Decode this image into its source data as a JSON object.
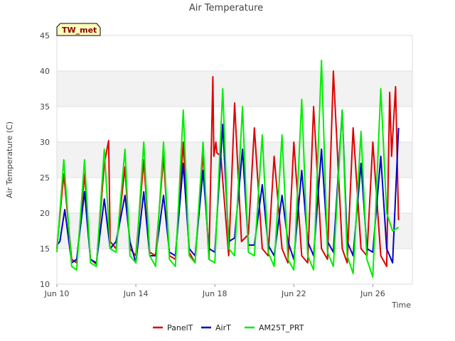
{
  "chart_data": {
    "type": "line",
    "title": "Air Temperature",
    "xlabel": "Time",
    "ylabel": "Air Temperature (C)",
    "station_label": "TW_met",
    "ylim": [
      10,
      45
    ],
    "yticks": [
      10,
      15,
      20,
      25,
      30,
      35,
      40,
      45
    ],
    "xlim": [
      10,
      28
    ],
    "xticks": [
      {
        "x": 10,
        "label": "Jun 10"
      },
      {
        "x": 14,
        "label": "Jun 14"
      },
      {
        "x": 18,
        "label": "Jun 18"
      },
      {
        "x": 22,
        "label": "Jun 22"
      },
      {
        "x": 26,
        "label": "Jun 26"
      }
    ],
    "grid": "horizontal bands",
    "legend_position": "bottom",
    "series": [
      {
        "name": "PanelT",
        "color": "#dd0000",
        "x": [
          10.0,
          10.35,
          10.75,
          11.0,
          11.4,
          11.7,
          12.0,
          12.4,
          12.62,
          12.7,
          13.0,
          13.45,
          13.7,
          14.0,
          14.4,
          14.7,
          15.0,
          15.4,
          15.7,
          16.0,
          16.4,
          16.7,
          17.0,
          17.4,
          17.7,
          17.9,
          17.95,
          18.05,
          18.1,
          18.3,
          18.7,
          19.0,
          19.35,
          19.7,
          20.0,
          20.4,
          20.7,
          21.0,
          21.4,
          21.7,
          22.0,
          22.4,
          22.7,
          23.0,
          23.4,
          23.7,
          24.0,
          24.45,
          24.7,
          25.0,
          25.4,
          25.7,
          26.0,
          26.4,
          26.7,
          26.85,
          26.95,
          27.15,
          27.3
        ],
        "y": [
          15.0,
          25.5,
          13.5,
          13.0,
          25.5,
          13.5,
          12.8,
          27.0,
          30.2,
          16.0,
          15.0,
          26.5,
          15.0,
          14.0,
          27.5,
          14.5,
          14.0,
          28.0,
          14.0,
          13.5,
          30.0,
          14.5,
          13.0,
          28.5,
          13.5,
          39.2,
          28.0,
          30.0,
          28.5,
          28.0,
          14.0,
          35.5,
          16.0,
          17.0,
          32.0,
          15.0,
          14.0,
          28.0,
          15.0,
          13.0,
          30.0,
          14.0,
          13.0,
          35.0,
          15.0,
          13.5,
          40.0,
          15.0,
          13.0,
          32.0,
          15.0,
          14.0,
          30.0,
          14.0,
          12.5,
          37.0,
          28.0,
          37.8,
          19.0
        ]
      },
      {
        "name": "AirT",
        "color": "#0000cc",
        "x": [
          10.0,
          10.15,
          10.4,
          10.75,
          11.0,
          11.4,
          11.7,
          12.0,
          12.4,
          12.7,
          13.0,
          13.45,
          13.7,
          14.0,
          14.4,
          14.7,
          15.0,
          15.4,
          15.7,
          16.0,
          16.4,
          16.7,
          17.0,
          17.4,
          17.7,
          18.0,
          18.4,
          18.7,
          19.0,
          19.4,
          19.7,
          20.0,
          20.4,
          20.7,
          21.0,
          21.4,
          21.7,
          22.0,
          22.4,
          22.7,
          23.0,
          23.4,
          23.7,
          24.0,
          24.45,
          24.7,
          25.0,
          25.4,
          25.7,
          26.0,
          26.4,
          26.7,
          27.0,
          27.3
        ],
        "y": [
          15.5,
          16.0,
          20.5,
          13.0,
          13.5,
          23.0,
          13.5,
          13.0,
          22.0,
          15.0,
          16.0,
          22.5,
          16.0,
          13.0,
          23.0,
          14.0,
          14.0,
          22.5,
          14.5,
          14.0,
          27.0,
          15.0,
          14.0,
          26.0,
          15.0,
          14.5,
          32.5,
          16.0,
          16.5,
          29.0,
          15.5,
          15.5,
          24.0,
          15.5,
          14.0,
          22.5,
          16.0,
          13.5,
          26.0,
          16.0,
          14.0,
          29.0,
          16.0,
          14.5,
          34.5,
          16.0,
          14.0,
          27.0,
          15.0,
          14.5,
          28.0,
          15.0,
          13.0,
          32.0
        ]
      },
      {
        "name": "AM25T_PRT",
        "color": "#00ee00",
        "x": [
          10.0,
          10.35,
          10.75,
          11.0,
          11.4,
          11.7,
          12.0,
          12.4,
          12.7,
          13.0,
          13.45,
          13.7,
          14.0,
          14.4,
          14.7,
          15.0,
          15.4,
          15.7,
          16.0,
          16.4,
          16.7,
          17.0,
          17.4,
          17.7,
          18.0,
          18.4,
          18.7,
          19.0,
          19.4,
          19.7,
          20.0,
          20.4,
          20.7,
          21.0,
          21.4,
          21.7,
          22.0,
          22.4,
          22.7,
          23.0,
          23.4,
          23.7,
          24.0,
          24.45,
          24.7,
          25.0,
          25.4,
          25.7,
          26.0,
          26.4,
          26.7,
          27.0,
          27.3
        ],
        "y": [
          14.5,
          27.5,
          12.5,
          12.0,
          27.5,
          13.0,
          12.5,
          29.0,
          15.0,
          14.5,
          29.0,
          14.0,
          13.0,
          30.0,
          14.0,
          12.5,
          30.0,
          13.5,
          12.5,
          34.5,
          14.0,
          13.0,
          30.0,
          13.5,
          13.0,
          37.5,
          15.0,
          14.0,
          35.0,
          14.5,
          14.0,
          31.0,
          14.5,
          12.5,
          31.0,
          13.5,
          12.0,
          36.0,
          14.0,
          12.0,
          41.5,
          14.5,
          12.5,
          34.5,
          14.0,
          11.5,
          31.5,
          13.5,
          11.0,
          37.5,
          20.0,
          17.5,
          18.0
        ]
      }
    ]
  }
}
